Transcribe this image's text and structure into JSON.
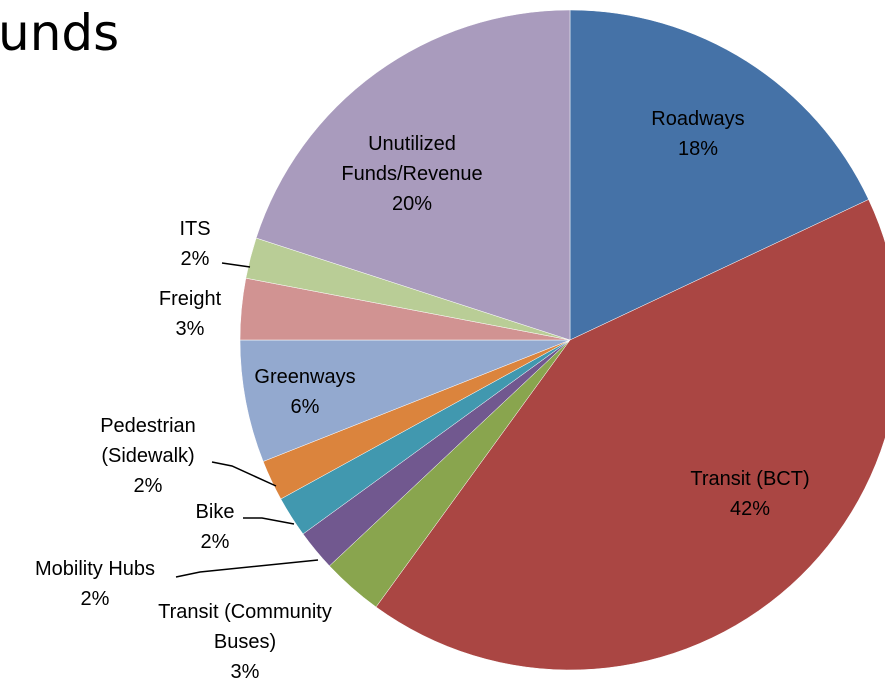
{
  "chart_data": {
    "type": "pie",
    "title": "unds",
    "categories": [
      [
        "Roadways"
      ],
      [
        "Transit (BCT)"
      ],
      [
        "Transit (Community",
        "Buses)"
      ],
      [
        "Mobility Hubs"
      ],
      [
        "Bike"
      ],
      [
        "Pedestrian",
        "(Sidewalk)"
      ],
      [
        "Greenways"
      ],
      [
        "Freight"
      ],
      [
        "ITS"
      ],
      [
        "Unutilized",
        "Funds/Revenue"
      ]
    ],
    "values": [
      18,
      42,
      3,
      2,
      2,
      2,
      6,
      3,
      2,
      20
    ],
    "value_labels": [
      "18%",
      "42%",
      "3%",
      "2%",
      "2%",
      "2%",
      "6%",
      "3%",
      "2%",
      "20%"
    ],
    "colors": [
      "#4572a7",
      "#aa4643",
      "#89a54e",
      "#71588f",
      "#4198af",
      "#db843d",
      "#93a9cf",
      "#d19392",
      "#b9cd96",
      "#a99bbd"
    ]
  }
}
